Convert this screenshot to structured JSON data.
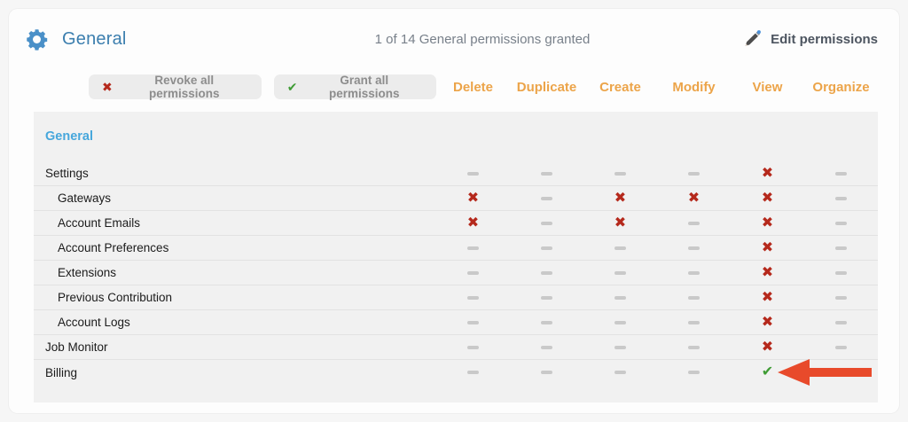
{
  "header": {
    "title": "General",
    "summary": "1 of 14 General permissions granted",
    "edit_label": "Edit permissions"
  },
  "toolbar": {
    "revoke_label": "Revoke all permissions",
    "grant_label": "Grant all permissions"
  },
  "columns": [
    "Delete",
    "Duplicate",
    "Create",
    "Modify",
    "View",
    "Organize"
  ],
  "table": {
    "section": "General",
    "rows": [
      {
        "label": "Settings",
        "indent": false,
        "cells": [
          "none",
          "none",
          "none",
          "none",
          "deny",
          "none"
        ]
      },
      {
        "label": "Gateways",
        "indent": true,
        "cells": [
          "deny",
          "none",
          "deny",
          "deny",
          "deny",
          "none"
        ]
      },
      {
        "label": "Account Emails",
        "indent": true,
        "cells": [
          "deny",
          "none",
          "deny",
          "none",
          "deny",
          "none"
        ]
      },
      {
        "label": "Account Preferences",
        "indent": true,
        "cells": [
          "none",
          "none",
          "none",
          "none",
          "deny",
          "none"
        ]
      },
      {
        "label": "Extensions",
        "indent": true,
        "cells": [
          "none",
          "none",
          "none",
          "none",
          "deny",
          "none"
        ]
      },
      {
        "label": "Previous Contribution",
        "indent": true,
        "cells": [
          "none",
          "none",
          "none",
          "none",
          "deny",
          "none"
        ]
      },
      {
        "label": "Account Logs",
        "indent": true,
        "cells": [
          "none",
          "none",
          "none",
          "none",
          "deny",
          "none"
        ]
      },
      {
        "label": "Job Monitor",
        "indent": false,
        "cells": [
          "none",
          "none",
          "none",
          "none",
          "deny",
          "none"
        ]
      },
      {
        "label": "Billing",
        "indent": false,
        "cells": [
          "none",
          "none",
          "none",
          "none",
          "grant",
          "none"
        ],
        "arrow": true
      }
    ]
  },
  "icons": {
    "deny": "✖",
    "grant": "✔"
  },
  "colors": {
    "accent_orange": "#ECA449",
    "title_blue": "#3B7EAE",
    "section_blue": "#47A7DC",
    "gear_blue": "#4A90C8",
    "deny_red": "#B5291C",
    "grant_green": "#3F9C35",
    "arrow_red": "#E84A2B"
  }
}
